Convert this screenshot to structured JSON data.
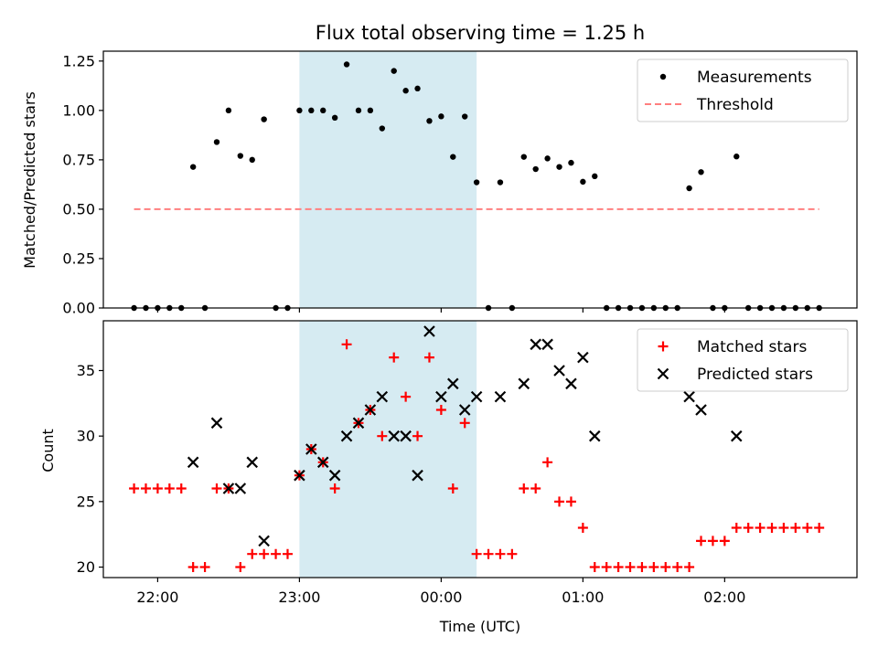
{
  "chart_data": [
    {
      "type": "scatter",
      "title": "Flux total observing time = 1.25 h",
      "xlabel": "",
      "ylabel": "Matched/Predicted stars",
      "x_tick_labels": [
        "22:00",
        "23:00",
        "00:00",
        "01:00",
        "02:00"
      ],
      "y_ticks": [
        0.0,
        0.25,
        0.5,
        0.75,
        1.0,
        1.25
      ],
      "y_tick_labels": [
        "0.00",
        "0.25",
        "0.50",
        "0.75",
        "1.00",
        "1.25"
      ],
      "xlim": [
        "21:37",
        "02:56"
      ],
      "ylim": [
        0,
        1.3
      ],
      "shaded_interval": {
        "start": "23:00",
        "end": "00:15",
        "color": "#add8e6"
      },
      "legend_position": "upper right",
      "series": [
        {
          "name": "Measurements",
          "style": "dot",
          "color": "#000000",
          "points": [
            [
              "21:50",
              0
            ],
            [
              "21:55",
              0
            ],
            [
              "22:00",
              0
            ],
            [
              "22:05",
              0
            ],
            [
              "22:10",
              0
            ],
            [
              "22:15",
              0.714
            ],
            [
              "22:20",
              0
            ],
            [
              "22:25",
              0.84
            ],
            [
              "22:30",
              1.0
            ],
            [
              "22:35",
              0.77
            ],
            [
              "22:40",
              0.75
            ],
            [
              "22:45",
              0.955
            ],
            [
              "22:50",
              0
            ],
            [
              "22:55",
              0
            ],
            [
              "23:00",
              1.0
            ],
            [
              "23:05",
              1.0
            ],
            [
              "23:10",
              1.0
            ],
            [
              "23:15",
              0.963
            ],
            [
              "23:20",
              1.233
            ],
            [
              "23:25",
              1.0
            ],
            [
              "23:30",
              1.0
            ],
            [
              "23:35",
              0.909
            ],
            [
              "23:40",
              1.2
            ],
            [
              "23:45",
              1.1
            ],
            [
              "23:50",
              1.111
            ],
            [
              "23:55",
              0.947
            ],
            [
              "00:00",
              0.97
            ],
            [
              "00:05",
              0.765
            ],
            [
              "00:10",
              0.969
            ],
            [
              "00:15",
              0.636
            ],
            [
              "00:20",
              0
            ],
            [
              "00:25",
              0.636
            ],
            [
              "00:30",
              0
            ],
            [
              "00:35",
              0.765
            ],
            [
              "00:40",
              0.703
            ],
            [
              "00:45",
              0.757
            ],
            [
              "00:50",
              0.714
            ],
            [
              "00:55",
              0.735
            ],
            [
              "01:00",
              0.639
            ],
            [
              "01:05",
              0.667
            ],
            [
              "01:10",
              0
            ],
            [
              "01:15",
              0
            ],
            [
              "01:20",
              0
            ],
            [
              "01:25",
              0
            ],
            [
              "01:30",
              0
            ],
            [
              "01:35",
              0
            ],
            [
              "01:40",
              0
            ],
            [
              "01:45",
              0.606
            ],
            [
              "01:50",
              0.688
            ],
            [
              "01:55",
              0
            ],
            [
              "02:00",
              0
            ],
            [
              "02:05",
              0.767
            ],
            [
              "02:10",
              0
            ],
            [
              "02:15",
              0
            ],
            [
              "02:20",
              0
            ],
            [
              "02:25",
              0
            ],
            [
              "02:30",
              0
            ],
            [
              "02:35",
              0
            ],
            [
              "02:40",
              0
            ]
          ]
        },
        {
          "name": "Threshold",
          "style": "dashed-line",
          "color": "#ff7f7f",
          "points": [
            [
              "21:50",
              0.5
            ],
            [
              "02:40",
              0.5
            ]
          ]
        }
      ]
    },
    {
      "type": "scatter",
      "title": "",
      "xlabel": "Time (UTC)",
      "ylabel": "Count",
      "x_tick_labels": [
        "22:00",
        "23:00",
        "00:00",
        "01:00",
        "02:00"
      ],
      "y_ticks": [
        20,
        25,
        30,
        35
      ],
      "y_tick_labels": [
        "20",
        "25",
        "30",
        "35"
      ],
      "xlim": [
        "21:37",
        "02:56"
      ],
      "ylim": [
        19.2,
        38.8
      ],
      "shaded_interval": {
        "start": "23:00",
        "end": "00:15",
        "color": "#add8e6"
      },
      "legend_position": "upper right",
      "series": [
        {
          "name": "Matched stars",
          "style": "plus",
          "color": "#ff0000",
          "points": [
            [
              "21:50",
              26
            ],
            [
              "21:55",
              26
            ],
            [
              "22:00",
              26
            ],
            [
              "22:05",
              26
            ],
            [
              "22:10",
              26
            ],
            [
              "22:15",
              20
            ],
            [
              "22:20",
              20
            ],
            [
              "22:25",
              26
            ],
            [
              "22:30",
              26
            ],
            [
              "22:35",
              20
            ],
            [
              "22:40",
              21
            ],
            [
              "22:45",
              21
            ],
            [
              "22:50",
              21
            ],
            [
              "22:55",
              21
            ],
            [
              "23:00",
              27
            ],
            [
              "23:05",
              29
            ],
            [
              "23:10",
              28
            ],
            [
              "23:15",
              26
            ],
            [
              "23:20",
              37
            ],
            [
              "23:25",
              31
            ],
            [
              "23:30",
              32
            ],
            [
              "23:35",
              30
            ],
            [
              "23:40",
              36
            ],
            [
              "23:45",
              33
            ],
            [
              "23:50",
              30
            ],
            [
              "23:55",
              36
            ],
            [
              "00:00",
              32
            ],
            [
              "00:05",
              26
            ],
            [
              "00:10",
              31
            ],
            [
              "00:15",
              21
            ],
            [
              "00:20",
              21
            ],
            [
              "00:25",
              21
            ],
            [
              "00:30",
              21
            ],
            [
              "00:35",
              26
            ],
            [
              "00:40",
              26
            ],
            [
              "00:45",
              28
            ],
            [
              "00:50",
              25
            ],
            [
              "00:55",
              25
            ],
            [
              "01:00",
              23
            ],
            [
              "01:05",
              20
            ],
            [
              "01:10",
              20
            ],
            [
              "01:15",
              20
            ],
            [
              "01:20",
              20
            ],
            [
              "01:25",
              20
            ],
            [
              "01:30",
              20
            ],
            [
              "01:35",
              20
            ],
            [
              "01:40",
              20
            ],
            [
              "01:45",
              20
            ],
            [
              "01:50",
              22
            ],
            [
              "01:55",
              22
            ],
            [
              "02:00",
              22
            ],
            [
              "02:05",
              23
            ],
            [
              "02:10",
              23
            ],
            [
              "02:15",
              23
            ],
            [
              "02:20",
              23
            ],
            [
              "02:25",
              23
            ],
            [
              "02:30",
              23
            ],
            [
              "02:35",
              23
            ],
            [
              "02:40",
              23
            ]
          ]
        },
        {
          "name": "Predicted stars",
          "style": "x",
          "color": "#000000",
          "points": [
            [
              "22:15",
              28
            ],
            [
              "22:25",
              31
            ],
            [
              "22:30",
              26
            ],
            [
              "22:35",
              26
            ],
            [
              "22:40",
              28
            ],
            [
              "22:45",
              22
            ],
            [
              "23:00",
              27
            ],
            [
              "23:05",
              29
            ],
            [
              "23:10",
              28
            ],
            [
              "23:15",
              27
            ],
            [
              "23:20",
              30
            ],
            [
              "23:25",
              31
            ],
            [
              "23:30",
              32
            ],
            [
              "23:35",
              33
            ],
            [
              "23:40",
              30
            ],
            [
              "23:45",
              30
            ],
            [
              "23:50",
              27
            ],
            [
              "23:55",
              38
            ],
            [
              "00:00",
              33
            ],
            [
              "00:05",
              34
            ],
            [
              "00:10",
              32
            ],
            [
              "00:15",
              33
            ],
            [
              "00:25",
              33
            ],
            [
              "00:35",
              34
            ],
            [
              "00:40",
              37
            ],
            [
              "00:45",
              37
            ],
            [
              "00:50",
              35
            ],
            [
              "00:55",
              34
            ],
            [
              "01:00",
              36
            ],
            [
              "01:05",
              30
            ],
            [
              "01:45",
              33
            ],
            [
              "01:50",
              32
            ],
            [
              "02:05",
              30
            ]
          ]
        }
      ]
    }
  ]
}
